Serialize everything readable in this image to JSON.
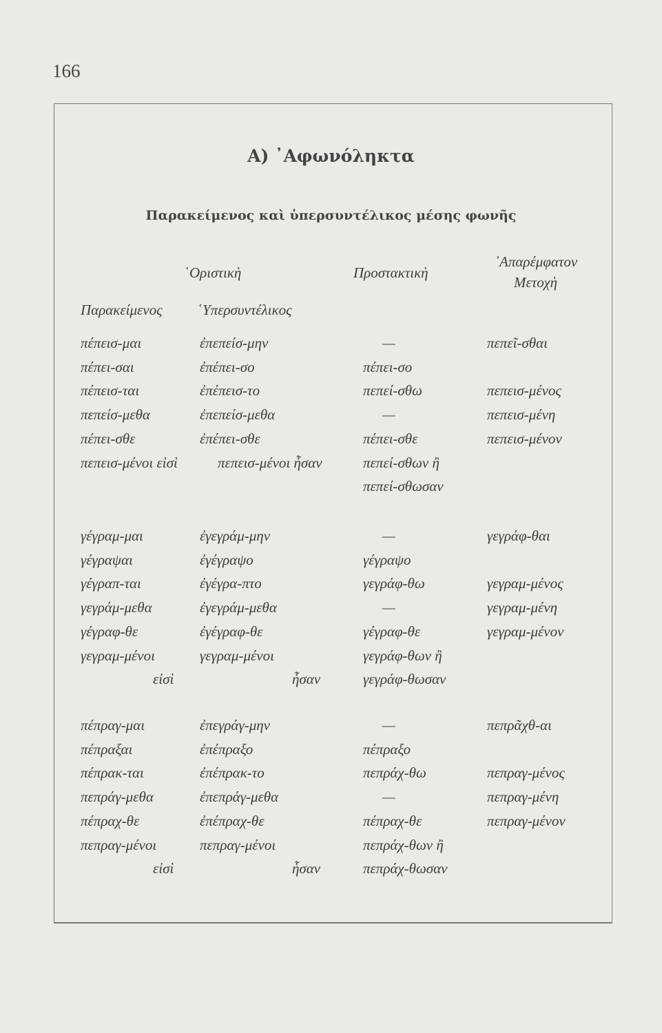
{
  "page_number": "166",
  "title": "Α) ᾿Αφωνόληκτα",
  "subtitle": "Παρακείμενος καὶ ὑπερσυντέλικος μέσης φωνῆς",
  "headers": {
    "indicative": "῾Οριστικὴ",
    "imperative": "Προστακτικὴ",
    "infinitive": "᾿Απαρέμφατον",
    "participle": "Μετοχὴ",
    "perfect": "Παρακείμενος",
    "pluperfect": "῾Υπερσυντέλικος"
  },
  "blocks": [
    {
      "rows": [
        [
          "πέπεισ-μαι",
          "ἐπεπείσ-μην",
          "—",
          "πεπεῖ-σθαι"
        ],
        [
          "πέπει-σαι",
          "ἐπέπει-σο",
          "πέπει-σο",
          ""
        ],
        [
          "πέπεισ-ται",
          "ἐπέπεισ-το",
          "πεπεί-σθω",
          "πεπεισ-μένος"
        ],
        [
          "πεπείσ-μεθα",
          "ἐπεπείσ-μεθα",
          "—",
          "πεπεισ-μένη"
        ],
        [
          "πέπει-σθε",
          "ἐπέπει-σθε",
          "πέπει-σθε",
          "πεπεισ-μένον"
        ],
        [
          "πεπεισ-μένοι εἰσὶ",
          "πεπεισ-μένοι ἦσαν",
          "πεπεί-σθων ἢ",
          ""
        ],
        [
          "",
          "",
          "πεπεί-σθωσαν",
          ""
        ]
      ]
    },
    {
      "rows": [
        [
          "γέγραμ-μαι",
          "ἐγεγράμ-μην",
          "—",
          "γεγράφ-θαι"
        ],
        [
          "γέγραψαι",
          "ἐγέγραψο",
          "γέγραψο",
          ""
        ],
        [
          "γέγραπ-ται",
          "ἐγέγρα-πτο",
          "γεγράφ-θω",
          "γεγραμ-μένος"
        ],
        [
          "γεγράμ-μεθα",
          "ἐγεγράμ-μεθα",
          "—",
          "γεγραμ-μένη"
        ],
        [
          "γέγραφ-θε",
          "ἐγέγραφ-θε",
          "γέγραφ-θε",
          "γεγραμ-μένον"
        ],
        [
          "γεγραμ-μένοι",
          "γεγραμ-μένοι",
          "γεγράφ-θων ἢ",
          ""
        ],
        [
          "εἰσὶ",
          "ἦσαν",
          "γεγράφ-θωσαν",
          ""
        ]
      ]
    },
    {
      "rows": [
        [
          "πέπραγ-μαι",
          "ἐπεγράγ-μην",
          "—",
          "πεπρᾶχθ-αι"
        ],
        [
          "πέπραξαι",
          "ἐπέπραξο",
          "πέπραξο",
          ""
        ],
        [
          "πέπρακ-ται",
          "ἐπέπρακ-το",
          "πεπράχ-θω",
          "πεπραγ-μένος"
        ],
        [
          "πεπράγ-μεθα",
          "ἐπεπράγ-μεθα",
          "—",
          "πεπραγ-μένη"
        ],
        [
          "πέπραχ-θε",
          "ἐπέπραχ-θε",
          "πέπραχ-θε",
          "πεπραγ-μένον"
        ],
        [
          "πεπραγ-μένοι",
          "πεπραγ-μένοι",
          "πεπράχ-θων ἢ",
          ""
        ],
        [
          "εἰσὶ",
          "ἦσαν",
          "πεπράχ-θωσαν",
          ""
        ]
      ]
    }
  ]
}
